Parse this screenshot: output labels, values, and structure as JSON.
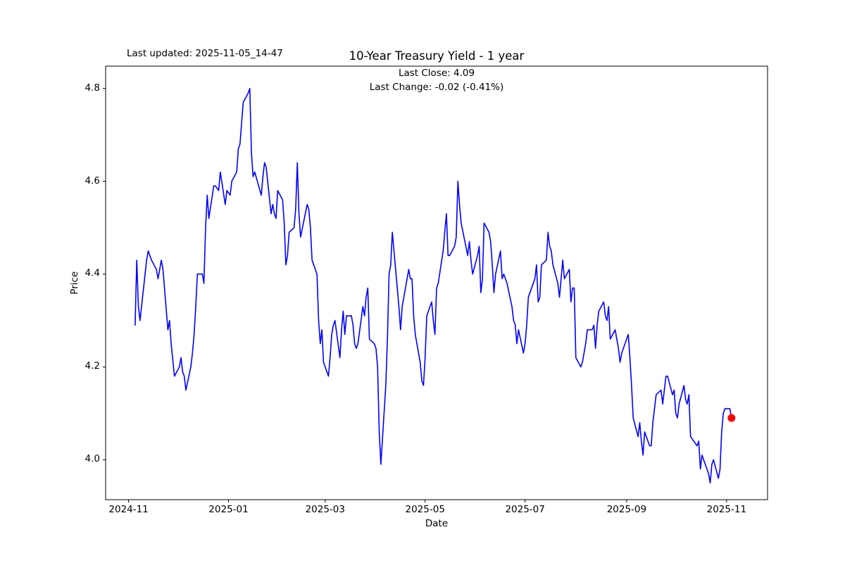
{
  "chart_data": {
    "type": "line",
    "title": "10-Year Treasury Yield - 1 year",
    "xlabel": "Date",
    "ylabel": "Price",
    "annotations": {
      "last_updated": "Last updated: 2025-11-05_14-47",
      "last_close": "Last Close: 4.09",
      "last_change": "Last Change: -0.02 (-0.41%)"
    },
    "line_color": "#0000ff",
    "last_point_marker_color": "#ff0000",
    "grid": false,
    "legend": "none",
    "ylim": [
      3.914,
      4.848
    ],
    "xlim": [
      "2024-10-18",
      "2025-11-26"
    ],
    "y_ticks": [
      {
        "value": 4.0,
        "label": "4.0"
      },
      {
        "value": 4.2,
        "label": "4.2"
      },
      {
        "value": 4.4,
        "label": "4.4"
      },
      {
        "value": 4.6,
        "label": "4.6"
      },
      {
        "value": 4.8,
        "label": "4.8"
      }
    ],
    "x_ticks": [
      {
        "date": "2024-11-01",
        "label": "2024-11"
      },
      {
        "date": "2025-01-01",
        "label": "2025-01"
      },
      {
        "date": "2025-03-01",
        "label": "2025-03"
      },
      {
        "date": "2025-05-01",
        "label": "2025-05"
      },
      {
        "date": "2025-07-01",
        "label": "2025-07"
      },
      {
        "date": "2025-09-01",
        "label": "2025-09"
      },
      {
        "date": "2025-11-01",
        "label": "2025-11"
      }
    ],
    "series": [
      {
        "name": "10-Year Treasury Yield",
        "points": [
          [
            "2024-11-05",
            4.29
          ],
          [
            "2024-11-06",
            4.43
          ],
          [
            "2024-11-07",
            4.33
          ],
          [
            "2024-11-08",
            4.3
          ],
          [
            "2024-11-12",
            4.43
          ],
          [
            "2024-11-13",
            4.45
          ],
          [
            "2024-11-14",
            4.44
          ],
          [
            "2024-11-15",
            4.43
          ],
          [
            "2024-11-18",
            4.41
          ],
          [
            "2024-11-19",
            4.39
          ],
          [
            "2024-11-20",
            4.41
          ],
          [
            "2024-11-21",
            4.43
          ],
          [
            "2024-11-22",
            4.41
          ],
          [
            "2024-11-25",
            4.28
          ],
          [
            "2024-11-26",
            4.3
          ],
          [
            "2024-11-27",
            4.25
          ],
          [
            "2024-11-29",
            4.18
          ],
          [
            "2024-12-02",
            4.2
          ],
          [
            "2024-12-03",
            4.22
          ],
          [
            "2024-12-04",
            4.19
          ],
          [
            "2024-12-05",
            4.18
          ],
          [
            "2024-12-06",
            4.15
          ],
          [
            "2024-12-09",
            4.2
          ],
          [
            "2024-12-10",
            4.23
          ],
          [
            "2024-12-11",
            4.27
          ],
          [
            "2024-12-12",
            4.33
          ],
          [
            "2024-12-13",
            4.4
          ],
          [
            "2024-12-16",
            4.4
          ],
          [
            "2024-12-17",
            4.38
          ],
          [
            "2024-12-18",
            4.5
          ],
          [
            "2024-12-19",
            4.57
          ],
          [
            "2024-12-20",
            4.52
          ],
          [
            "2024-12-23",
            4.59
          ],
          [
            "2024-12-24",
            4.59
          ],
          [
            "2024-12-26",
            4.58
          ],
          [
            "2024-12-27",
            4.62
          ],
          [
            "2024-12-30",
            4.55
          ],
          [
            "2024-12-31",
            4.58
          ],
          [
            "2025-01-02",
            4.57
          ],
          [
            "2025-01-03",
            4.6
          ],
          [
            "2025-01-06",
            4.62
          ],
          [
            "2025-01-07",
            4.67
          ],
          [
            "2025-01-08",
            4.68
          ],
          [
            "2025-01-10",
            4.77
          ],
          [
            "2025-01-13",
            4.79
          ],
          [
            "2025-01-14",
            4.8
          ],
          [
            "2025-01-15",
            4.66
          ],
          [
            "2025-01-16",
            4.61
          ],
          [
            "2025-01-17",
            4.62
          ],
          [
            "2025-01-21",
            4.57
          ],
          [
            "2025-01-22",
            4.61
          ],
          [
            "2025-01-23",
            4.64
          ],
          [
            "2025-01-24",
            4.63
          ],
          [
            "2025-01-27",
            4.53
          ],
          [
            "2025-01-28",
            4.55
          ],
          [
            "2025-01-29",
            4.53
          ],
          [
            "2025-01-30",
            4.52
          ],
          [
            "2025-01-31",
            4.58
          ],
          [
            "2025-02-03",
            4.56
          ],
          [
            "2025-02-04",
            4.51
          ],
          [
            "2025-02-05",
            4.42
          ],
          [
            "2025-02-06",
            4.44
          ],
          [
            "2025-02-07",
            4.49
          ],
          [
            "2025-02-10",
            4.5
          ],
          [
            "2025-02-11",
            4.54
          ],
          [
            "2025-02-12",
            4.64
          ],
          [
            "2025-02-13",
            4.53
          ],
          [
            "2025-02-14",
            4.48
          ],
          [
            "2025-02-18",
            4.55
          ],
          [
            "2025-02-19",
            4.54
          ],
          [
            "2025-02-20",
            4.5
          ],
          [
            "2025-02-21",
            4.43
          ],
          [
            "2025-02-24",
            4.4
          ],
          [
            "2025-02-25",
            4.3
          ],
          [
            "2025-02-26",
            4.25
          ],
          [
            "2025-02-27",
            4.28
          ],
          [
            "2025-02-28",
            4.21
          ],
          [
            "2025-03-03",
            4.18
          ],
          [
            "2025-03-04",
            4.22
          ],
          [
            "2025-03-05",
            4.27
          ],
          [
            "2025-03-06",
            4.29
          ],
          [
            "2025-03-07",
            4.3
          ],
          [
            "2025-03-10",
            4.22
          ],
          [
            "2025-03-11",
            4.28
          ],
          [
            "2025-03-12",
            4.32
          ],
          [
            "2025-03-13",
            4.27
          ],
          [
            "2025-03-14",
            4.31
          ],
          [
            "2025-03-17",
            4.31
          ],
          [
            "2025-03-18",
            4.29
          ],
          [
            "2025-03-19",
            4.25
          ],
          [
            "2025-03-20",
            4.24
          ],
          [
            "2025-03-21",
            4.25
          ],
          [
            "2025-03-24",
            4.33
          ],
          [
            "2025-03-25",
            4.31
          ],
          [
            "2025-03-26",
            4.35
          ],
          [
            "2025-03-27",
            4.37
          ],
          [
            "2025-03-28",
            4.26
          ],
          [
            "2025-03-31",
            4.25
          ],
          [
            "2025-04-01",
            4.24
          ],
          [
            "2025-04-02",
            4.2
          ],
          [
            "2025-04-03",
            4.06
          ],
          [
            "2025-04-04",
            3.99
          ],
          [
            "2025-04-07",
            4.16
          ],
          [
            "2025-04-08",
            4.26
          ],
          [
            "2025-04-09",
            4.4
          ],
          [
            "2025-04-10",
            4.42
          ],
          [
            "2025-04-11",
            4.49
          ],
          [
            "2025-04-14",
            4.37
          ],
          [
            "2025-04-15",
            4.33
          ],
          [
            "2025-04-16",
            4.28
          ],
          [
            "2025-04-17",
            4.33
          ],
          [
            "2025-04-21",
            4.41
          ],
          [
            "2025-04-22",
            4.39
          ],
          [
            "2025-04-23",
            4.39
          ],
          [
            "2025-04-24",
            4.31
          ],
          [
            "2025-04-25",
            4.27
          ],
          [
            "2025-04-28",
            4.21
          ],
          [
            "2025-04-29",
            4.17
          ],
          [
            "2025-04-30",
            4.16
          ],
          [
            "2025-05-01",
            4.22
          ],
          [
            "2025-05-02",
            4.31
          ],
          [
            "2025-05-05",
            4.34
          ],
          [
            "2025-05-06",
            4.3
          ],
          [
            "2025-05-07",
            4.27
          ],
          [
            "2025-05-08",
            4.37
          ],
          [
            "2025-05-09",
            4.38
          ],
          [
            "2025-05-12",
            4.45
          ],
          [
            "2025-05-13",
            4.49
          ],
          [
            "2025-05-14",
            4.53
          ],
          [
            "2025-05-15",
            4.44
          ],
          [
            "2025-05-16",
            4.44
          ],
          [
            "2025-05-19",
            4.46
          ],
          [
            "2025-05-20",
            4.48
          ],
          [
            "2025-05-21",
            4.6
          ],
          [
            "2025-05-22",
            4.55
          ],
          [
            "2025-05-23",
            4.51
          ],
          [
            "2025-05-27",
            4.44
          ],
          [
            "2025-05-28",
            4.47
          ],
          [
            "2025-05-29",
            4.43
          ],
          [
            "2025-05-30",
            4.4
          ],
          [
            "2025-06-02",
            4.44
          ],
          [
            "2025-06-03",
            4.46
          ],
          [
            "2025-06-04",
            4.36
          ],
          [
            "2025-06-05",
            4.39
          ],
          [
            "2025-06-06",
            4.51
          ],
          [
            "2025-06-09",
            4.49
          ],
          [
            "2025-06-10",
            4.47
          ],
          [
            "2025-06-11",
            4.42
          ],
          [
            "2025-06-12",
            4.36
          ],
          [
            "2025-06-13",
            4.4
          ],
          [
            "2025-06-16",
            4.45
          ],
          [
            "2025-06-17",
            4.39
          ],
          [
            "2025-06-18",
            4.4
          ],
          [
            "2025-06-20",
            4.38
          ],
          [
            "2025-06-23",
            4.33
          ],
          [
            "2025-06-24",
            4.3
          ],
          [
            "2025-06-25",
            4.29
          ],
          [
            "2025-06-26",
            4.25
          ],
          [
            "2025-06-27",
            4.28
          ],
          [
            "2025-06-30",
            4.23
          ],
          [
            "2025-07-01",
            4.25
          ],
          [
            "2025-07-02",
            4.29
          ],
          [
            "2025-07-03",
            4.35
          ],
          [
            "2025-07-07",
            4.39
          ],
          [
            "2025-07-08",
            4.42
          ],
          [
            "2025-07-09",
            4.34
          ],
          [
            "2025-07-10",
            4.35
          ],
          [
            "2025-07-11",
            4.42
          ],
          [
            "2025-07-14",
            4.43
          ],
          [
            "2025-07-15",
            4.49
          ],
          [
            "2025-07-16",
            4.46
          ],
          [
            "2025-07-17",
            4.45
          ],
          [
            "2025-07-18",
            4.42
          ],
          [
            "2025-07-21",
            4.38
          ],
          [
            "2025-07-22",
            4.35
          ],
          [
            "2025-07-23",
            4.39
          ],
          [
            "2025-07-24",
            4.43
          ],
          [
            "2025-07-25",
            4.39
          ],
          [
            "2025-07-28",
            4.41
          ],
          [
            "2025-07-29",
            4.34
          ],
          [
            "2025-07-30",
            4.37
          ],
          [
            "2025-07-31",
            4.37
          ],
          [
            "2025-08-01",
            4.22
          ],
          [
            "2025-08-04",
            4.2
          ],
          [
            "2025-08-05",
            4.21
          ],
          [
            "2025-08-06",
            4.23
          ],
          [
            "2025-08-07",
            4.25
          ],
          [
            "2025-08-08",
            4.28
          ],
          [
            "2025-08-11",
            4.28
          ],
          [
            "2025-08-12",
            4.29
          ],
          [
            "2025-08-13",
            4.24
          ],
          [
            "2025-08-14",
            4.29
          ],
          [
            "2025-08-15",
            4.32
          ],
          [
            "2025-08-18",
            4.34
          ],
          [
            "2025-08-19",
            4.31
          ],
          [
            "2025-08-20",
            4.3
          ],
          [
            "2025-08-21",
            4.33
          ],
          [
            "2025-08-22",
            4.26
          ],
          [
            "2025-08-25",
            4.28
          ],
          [
            "2025-08-26",
            4.26
          ],
          [
            "2025-08-27",
            4.24
          ],
          [
            "2025-08-28",
            4.21
          ],
          [
            "2025-08-29",
            4.23
          ],
          [
            "2025-09-02",
            4.27
          ],
          [
            "2025-09-03",
            4.22
          ],
          [
            "2025-09-04",
            4.16
          ],
          [
            "2025-09-05",
            4.09
          ],
          [
            "2025-09-08",
            4.05
          ],
          [
            "2025-09-09",
            4.08
          ],
          [
            "2025-09-10",
            4.04
          ],
          [
            "2025-09-11",
            4.01
          ],
          [
            "2025-09-12",
            4.06
          ],
          [
            "2025-09-15",
            4.03
          ],
          [
            "2025-09-16",
            4.03
          ],
          [
            "2025-09-17",
            4.08
          ],
          [
            "2025-09-18",
            4.11
          ],
          [
            "2025-09-19",
            4.14
          ],
          [
            "2025-09-22",
            4.15
          ],
          [
            "2025-09-23",
            4.12
          ],
          [
            "2025-09-24",
            4.15
          ],
          [
            "2025-09-25",
            4.18
          ],
          [
            "2025-09-26",
            4.18
          ],
          [
            "2025-09-29",
            4.14
          ],
          [
            "2025-09-30",
            4.15
          ],
          [
            "2025-10-01",
            4.1
          ],
          [
            "2025-10-02",
            4.09
          ],
          [
            "2025-10-03",
            4.12
          ],
          [
            "2025-10-06",
            4.16
          ],
          [
            "2025-10-07",
            4.13
          ],
          [
            "2025-10-08",
            4.12
          ],
          [
            "2025-10-09",
            4.14
          ],
          [
            "2025-10-10",
            4.05
          ],
          [
            "2025-10-14",
            4.03
          ],
          [
            "2025-10-15",
            4.04
          ],
          [
            "2025-10-16",
            3.98
          ],
          [
            "2025-10-17",
            4.01
          ],
          [
            "2025-10-20",
            3.98
          ],
          [
            "2025-10-21",
            3.97
          ],
          [
            "2025-10-22",
            3.95
          ],
          [
            "2025-10-23",
            3.99
          ],
          [
            "2025-10-24",
            4.0
          ],
          [
            "2025-10-27",
            3.96
          ],
          [
            "2025-10-28",
            3.98
          ],
          [
            "2025-10-29",
            4.06
          ],
          [
            "2025-10-30",
            4.1
          ],
          [
            "2025-10-31",
            4.11
          ],
          [
            "2025-11-03",
            4.11
          ],
          [
            "2025-11-04",
            4.09
          ]
        ]
      }
    ],
    "last_close": 4.09,
    "last_change": -0.02,
    "last_change_pct": "-0.41%"
  }
}
